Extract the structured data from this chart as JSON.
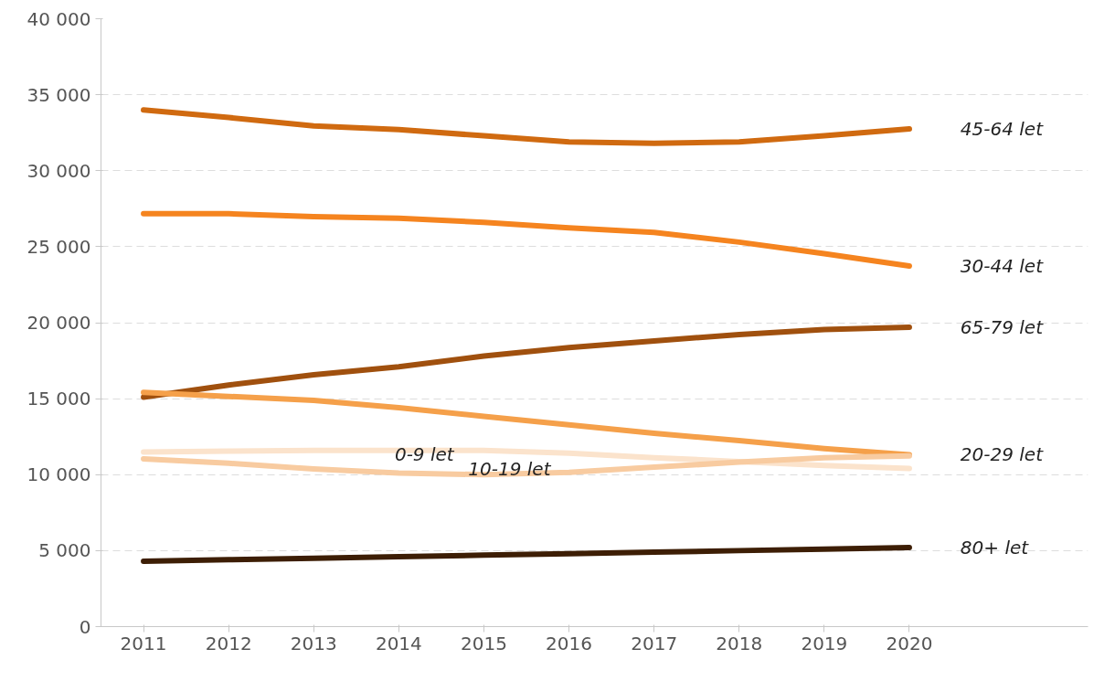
{
  "chart_data": {
    "type": "line",
    "categories": [
      "2011",
      "2012",
      "2013",
      "2014",
      "2015",
      "2016",
      "2017",
      "2018",
      "2019",
      "2020"
    ],
    "ylim": [
      0,
      40000
    ],
    "yticks": [
      {
        "value": 0,
        "label": "0"
      },
      {
        "value": 5000,
        "label": "5 000"
      },
      {
        "value": 10000,
        "label": "10 000"
      },
      {
        "value": 15000,
        "label": "15 000"
      },
      {
        "value": 20000,
        "label": "20 000"
      },
      {
        "value": 25000,
        "label": "25 000"
      },
      {
        "value": 30000,
        "label": "30 000"
      },
      {
        "value": 35000,
        "label": "35 000"
      },
      {
        "value": 40000,
        "label": "40 000"
      }
    ],
    "grid": "y",
    "marker": "none",
    "line_style": "solid",
    "series": [
      {
        "name": "45-64 let",
        "color": "#d06a10",
        "values": [
          34000,
          33500,
          32950,
          32700,
          32300,
          31900,
          31800,
          31900,
          32300,
          32750
        ]
      },
      {
        "name": "30-44 let",
        "color": "#f5841f",
        "values": [
          27170,
          27170,
          26980,
          26870,
          26600,
          26240,
          25940,
          25300,
          24540,
          23730
        ]
      },
      {
        "name": "65-79 let",
        "color": "#a0500e",
        "values": [
          15100,
          15900,
          16570,
          17100,
          17800,
          18360,
          18800,
          19220,
          19550,
          19700
        ]
      },
      {
        "name": "20-29 let",
        "color": "#f5a04a",
        "values": [
          15410,
          15150,
          14890,
          14400,
          13840,
          13280,
          12720,
          12240,
          11720,
          11310
        ]
      },
      {
        "name": "0-9 let",
        "color": "#fbe3cc",
        "values": [
          11490,
          11550,
          11600,
          11600,
          11600,
          11420,
          11120,
          10860,
          10600,
          10410
        ]
      },
      {
        "name": "10-19 let",
        "color": "#f8cba0",
        "values": [
          11040,
          10750,
          10370,
          10100,
          10000,
          10150,
          10490,
          10820,
          11120,
          11230
        ]
      },
      {
        "name": "80+ let",
        "color": "#3d1e05",
        "values": [
          4300,
          4400,
          4500,
          4600,
          4700,
          4800,
          4900,
          5000,
          5100,
          5200
        ]
      }
    ]
  }
}
